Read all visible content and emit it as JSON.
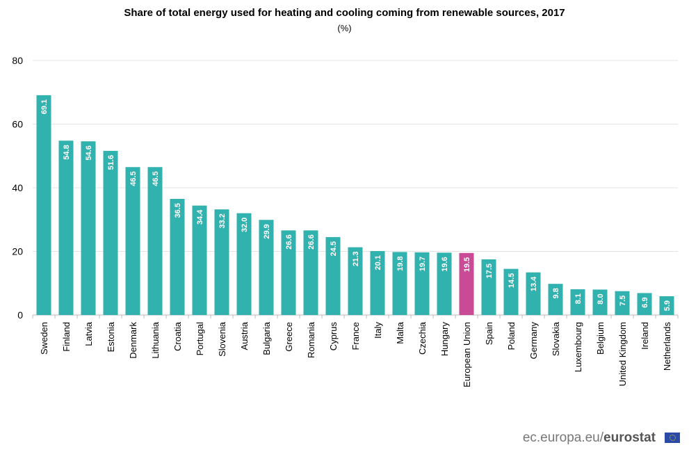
{
  "chart_data": {
    "type": "bar",
    "title": "Share of total energy used for heating and cooling coming from renewable sources, 2017",
    "subtitle": "(%)",
    "categories": [
      "Sweden",
      "Finland",
      "Latvia",
      "Estonia",
      "Denmark",
      "Lithuania",
      "Croatia",
      "Portugal",
      "Slovenia",
      "Austria",
      "Bulgaria",
      "Greece",
      "Romania",
      "Cyprus",
      "France",
      "Italy",
      "Malta",
      "Czechia",
      "Hungary",
      "European Union",
      "Spain",
      "Poland",
      "Germany",
      "Slovakia",
      "Luxembourg",
      "Belgium",
      "United Kingdom",
      "Ireland",
      "Netherlands"
    ],
    "values": [
      69.1,
      54.8,
      54.6,
      51.6,
      46.5,
      46.5,
      36.5,
      34.4,
      33.2,
      32.0,
      29.9,
      26.6,
      26.6,
      24.5,
      21.3,
      20.1,
      19.8,
      19.7,
      19.6,
      19.5,
      17.5,
      14.5,
      13.4,
      9.8,
      8.1,
      8.0,
      7.5,
      6.9,
      5.9
    ],
    "ylim": [
      0,
      80
    ],
    "yticks": [
      0,
      20,
      40,
      60,
      80
    ],
    "grid": true,
    "colors": {
      "default": "#32B2AF",
      "highlight": "#C94B96",
      "highlight_category": "European Union"
    }
  },
  "footer": {
    "site": "ec.europa.eu/",
    "brand": "eurostat"
  }
}
